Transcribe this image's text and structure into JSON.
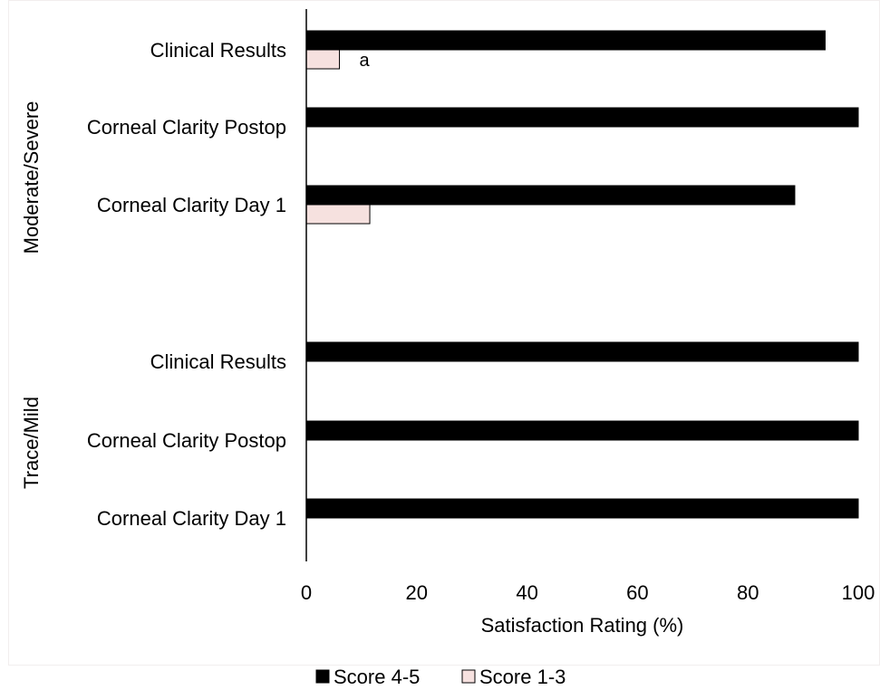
{
  "chart_data": {
    "type": "bar",
    "orientation": "horizontal",
    "xlabel": "Satisfaction Rating (%)",
    "xlim": [
      0,
      100
    ],
    "xticks": [
      "0",
      "20",
      "40",
      "60",
      "80",
      "100"
    ],
    "groups": [
      {
        "name": "Moderate/Severe",
        "categories": [
          "Clinical Results",
          "Corneal Clarity Postop",
          "Corneal Clarity Day 1"
        ]
      },
      {
        "name": "Trace/Mild",
        "categories": [
          "Clinical Results",
          "Corneal Clarity Postop",
          "Corneal Clarity Day 1"
        ]
      }
    ],
    "series": [
      {
        "name": "Score 4-5",
        "color": "#000000",
        "values": [
          [
            94,
            100,
            88.5
          ],
          [
            100,
            100,
            100
          ]
        ]
      },
      {
        "name": "Score 1-3",
        "color": "#f6e1df",
        "values": [
          [
            6,
            0,
            11.5
          ],
          [
            0,
            0,
            0
          ]
        ]
      }
    ],
    "annotations": [
      {
        "text": "a",
        "group": 0,
        "category": 0,
        "series": 1
      }
    ],
    "legend": {
      "position": "bottom",
      "entries": [
        "Score 4-5",
        "Score 1-3"
      ]
    },
    "grid": false
  }
}
